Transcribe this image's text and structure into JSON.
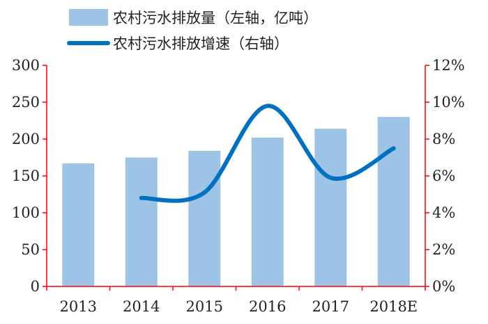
{
  "chart_data": {
    "type": "bar",
    "categories": [
      "2013",
      "2014",
      "2015",
      "2016",
      "2017",
      "2018E"
    ],
    "series": [
      {
        "name": "农村污水排放量（左轴，亿吨）",
        "type": "bar",
        "axis": "left",
        "color": "#9dc3e6",
        "values": [
          167,
          175,
          184,
          202,
          214,
          230
        ]
      },
      {
        "name": "农村污水排放增速（右轴）",
        "type": "line",
        "axis": "right",
        "color": "#0070c0",
        "values": [
          null,
          4.8,
          5.1,
          9.8,
          5.9,
          7.5
        ]
      }
    ],
    "y_left": {
      "ylim": [
        0,
        300
      ],
      "ticks": [
        "0",
        "50",
        "100",
        "150",
        "200",
        "250",
        "300"
      ]
    },
    "y_right": {
      "ylim": [
        0,
        12
      ],
      "ticks": [
        "0%",
        "2%",
        "4%",
        "6%",
        "8%",
        "10%",
        "12%"
      ]
    },
    "axis_color": "#ff0000",
    "grid": false,
    "legend_position": "top-left"
  }
}
